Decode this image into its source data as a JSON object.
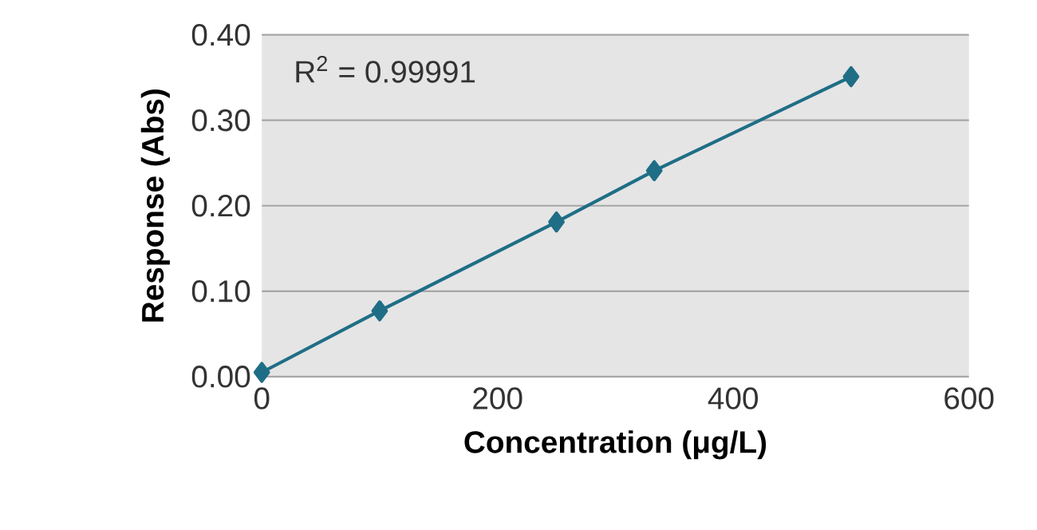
{
  "chart_data": {
    "type": "line",
    "xlabel": "Concentration (μg/L)",
    "ylabel": "Response (Abs)",
    "annotations": [
      "R$^{2}$ = 0.99991"
    ],
    "x": [
      0,
      100,
      250,
      333,
      500
    ],
    "series": [
      {
        "color": "#1f6e86",
        "values": [
          0.005,
          0.077,
          0.181,
          0.241,
          0.351
        ]
      }
    ],
    "xlim": [
      0,
      600
    ],
    "ylim": [
      0,
      0.4
    ],
    "xticks": [
      0,
      200,
      400,
      600
    ],
    "yticks": [
      {
        "value": 0,
        "label": "0.00"
      },
      {
        "value": 0.1,
        "label": "0.10"
      },
      {
        "value": 0.2,
        "label": "0.20"
      },
      {
        "value": 0.3,
        "label": "0.30"
      },
      {
        "value": 0.4,
        "label": "0.40"
      }
    ],
    "grid": "y",
    "marker": "diamond",
    "line_style": "solid"
  }
}
